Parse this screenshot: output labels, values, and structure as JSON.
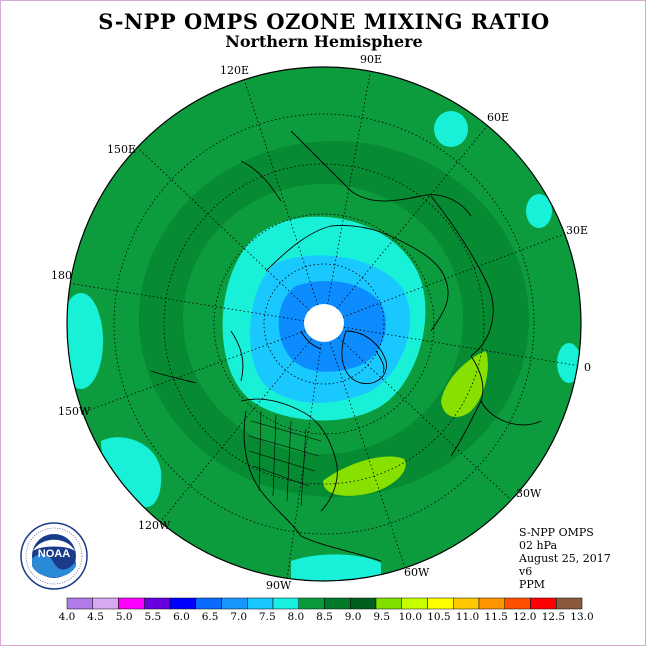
{
  "title": "S-NPP OMPS OZONE MIXING RATIO",
  "subtitle": "Northern Hemisphere",
  "longitude_labels": [
    "90E",
    "60E",
    "30E",
    "0",
    "30W",
    "60W",
    "90W",
    "120W",
    "150W",
    "180",
    "150E",
    "120E"
  ],
  "info": {
    "instrument": "S-NPP OMPS",
    "level": "02 hPa",
    "date": "August 25, 2017",
    "version": "v6",
    "units": "PPM"
  },
  "colorbar": {
    "ticks": [
      "4.0",
      "4.5",
      "5.0",
      "5.5",
      "6.0",
      "6.5",
      "7.0",
      "7.5",
      "8.0",
      "8.5",
      "9.0",
      "9.5",
      "10.0",
      "10.5",
      "11.0",
      "11.5",
      "12.0",
      "12.5",
      "13.0"
    ],
    "colors": [
      "#b07ae8",
      "#d8a8f0",
      "#ff00ff",
      "#6a00e0",
      "#0000ff",
      "#0a6cff",
      "#1898ff",
      "#18c8ff",
      "#18f0e0",
      "#0a9a3a",
      "#007a28",
      "#005f1e",
      "#80e000",
      "#c8ff00",
      "#ffff00",
      "#ffc800",
      "#ff9600",
      "#ff5000",
      "#ff0000",
      "#8b5a3c"
    ]
  },
  "logo": {
    "text": "NOAA"
  },
  "colors": {
    "background": "#ffffff",
    "frame": "#d8a8d8"
  }
}
